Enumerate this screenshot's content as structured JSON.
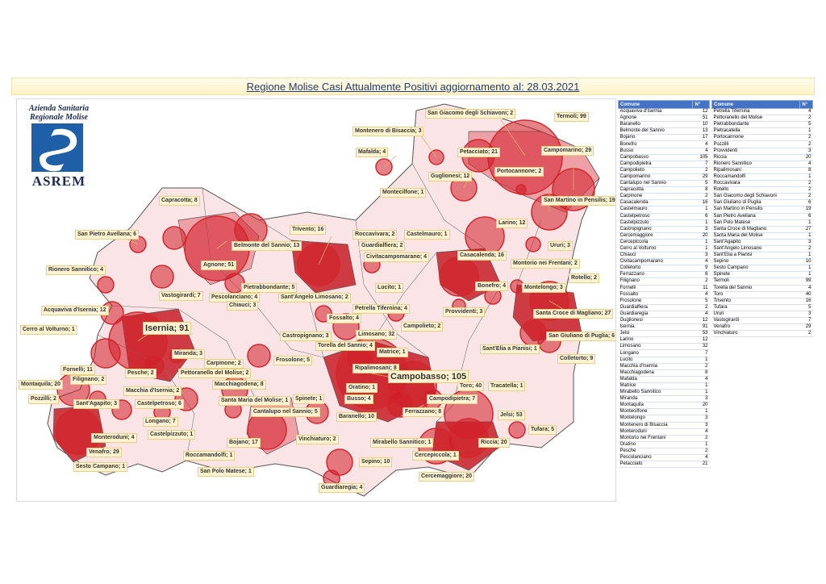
{
  "title": "Regione Molise Casi Attualmente Positivi aggiornamento al: 28.03.2021",
  "logo": {
    "line1": "Azienda Sanitaria",
    "line2": "Regionale Molise",
    "acronym": "ASREM",
    "emblem": "asrem-emblem"
  },
  "colors": {
    "marker": "#d4272b",
    "marker_fill": "rgba(210,30,40,0.55)",
    "header": "#4472c4",
    "label_bg": "#fff4cf"
  },
  "map_labels": {
    "sg_schiavoni": "San Giacomo degli Schiavoni; 2",
    "termoli": "Termoli; 99",
    "montenero": "Montenero di Bisaccia; 3",
    "mafalda": "Mafalda; 4",
    "petacciato": "Petacciato; 21",
    "campomarino": "Campomarino; 29",
    "portocannone": "Portocannone; 2",
    "guglionesi": "Guglionesi; 12",
    "montecilfone": "Montecilfone; 1",
    "sm_pensilis": "San Martino in Pensilis; 19",
    "capracotta": "Capracotta; 8",
    "trivento": "Trivento; 16",
    "roccavivara": "Roccavivara; 2",
    "castelmauro": "Castelmauro; 1",
    "larino": "Larino; 12",
    "ururi": "Ururi; 3",
    "sp_avellana": "San Pietro Avellana; 6",
    "belmonte": "Belmonte del Sannio; 13",
    "guardialfiera": "Guardialfiera; 2",
    "civitacampomarano": "Civitacampomarano; 4",
    "casacalenda": "Casacalenda; 16",
    "montorio": "Montorio nei Frentani; 2",
    "agnone": "Agnone; 51",
    "rionero": "Rionero Sannitico; 4",
    "rotello": "Rotello; 2",
    "pietrabbondante": "Pietrabbondante; 5",
    "vastogirardi": "Vastogirardi; 7",
    "lucito": "Lucito; 1",
    "bonefro": "Bonefro; 4",
    "montelongo": "Montelongo; 3",
    "pescolanciano": "Pescolanciano; 4",
    "sa_limosano": "Sant'Angelo Limosano; 2",
    "acquaviva": "Acquaviva d'Isernia; 12",
    "chiauci": "Chiauci; 3",
    "petrella": "Petrella Tifernina; 4",
    "provvidenti": "Provvidenti; 3",
    "scm": "Santa Croce di Magliano; 27",
    "fossalto": "Fossalto; 4",
    "cerro": "Cerro al Volturno; 1",
    "isernia": "Isernia; 91",
    "castropignano": "Castropignano; 3",
    "limosano": "Limosano; 32",
    "campolieto": "Campolieto; 2",
    "sg_puglia": "San Giuliano di Puglia; 6",
    "torella": "Torella del Sannio; 4",
    "miranda": "Miranda; 3",
    "matrice": "Matrice; 1",
    "se_pianisi": "Sant'Elia a Pianisi; 1",
    "fornelli": "Fornelli; 11",
    "carpinone": "Carpinone; 2",
    "frosolone": "Frosolone; 5",
    "colletorto": "Colletorto; 9",
    "filignano": "Filignano; 2",
    "pesche": "Pesche; 2",
    "pettoranello": "Pettoranello del Molise; 2",
    "ripalimosani": "Ripalimosani; 8",
    "montaquila": "Montaquila; 20",
    "campobasso": "Campobasso; 105",
    "macchia": "Macchia d'Isernia; 2",
    "oratino": "Oratino; 1",
    "toro": "Toro; 40",
    "tracatella": "Tracatella; 1",
    "macchiagodena": "Macchiagodena; 8",
    "pozzilli": "Pozzilli; 2",
    "santagapito": "Sant'Agapito; 3",
    "castelpetroso": "Castelpetroso; 6",
    "sm_molise": "Santa Maria del Molise; 1",
    "spinete": "Spinete; 1",
    "busso": "Busso; 4",
    "campodipietra": "Campodipietra; 7",
    "cantalupo": "Cantalupo nel Sannio; 5",
    "ferrazzano": "Ferrazzano; 8",
    "longano": "Longano; 7",
    "baranello": "Baranello; 10",
    "jelsi": "Jelsi; 53",
    "monteroduni": "Monteroduni; 4",
    "castelpizzuto": "Castelpizzuto; 1",
    "tufara": "Tufara; 5",
    "vinchiaturo": "Vinchiaturo; 2",
    "mirabello": "Mirabello Sannitico; 1",
    "bojano": "Bojano; 17",
    "riccia": "Riccia; 20",
    "venafro": "Venafro; 29",
    "roccamandolfi": "Roccamandolfi; 1",
    "cercepiccola": "Cercepiccola; 1",
    "sepino": "Sepino; 10",
    "sesto": "Sesto Campano; 1",
    "sp_matese": "San Polo Matese; 1",
    "cercemaggiore": "Cercemaggiore; 20",
    "guardiaregia": "Guardiaregia; 4"
  },
  "table": {
    "headers": {
      "comune": "Comune",
      "n": "N°"
    },
    "left": [
      [
        "Acquaviva d'Isernia",
        "12"
      ],
      [
        "Agnone",
        "51"
      ],
      [
        "Baranello",
        "10"
      ],
      [
        "Belmonte del Sannio",
        "13"
      ],
      [
        "Bojano",
        "17"
      ],
      [
        "Bonefro",
        "4"
      ],
      [
        "Busso",
        "4"
      ],
      [
        "Campobasso",
        "105"
      ],
      [
        "Campodipietra",
        "7"
      ],
      [
        "Campolieto",
        "2"
      ],
      [
        "Campomarino",
        "29"
      ],
      [
        "Cantalupo nel Sannio",
        "5"
      ],
      [
        "Capracotta",
        "8"
      ],
      [
        "Carpinone",
        "2"
      ],
      [
        "Casacalenda",
        "16"
      ],
      [
        "Castelmauro",
        "1"
      ],
      [
        "Castelpetroso",
        "6"
      ],
      [
        "Castelpizzuto",
        "1"
      ],
      [
        "Castropignano",
        "3"
      ],
      [
        "Cercemaggiore",
        "20"
      ],
      [
        "Cercepiccola",
        "1"
      ],
      [
        "Cerro al Volturno",
        "1"
      ],
      [
        "Chiauci",
        "3"
      ],
      [
        "Civitacampomarano",
        "4"
      ],
      [
        "Colletorto",
        "9"
      ],
      [
        "Ferrazzano",
        "8"
      ],
      [
        "Filignano",
        "2"
      ],
      [
        "Fornelli",
        "11"
      ],
      [
        "Fossalto",
        "4"
      ],
      [
        "Frosolone",
        "5"
      ],
      [
        "Guardialfiera",
        "2"
      ],
      [
        "Guardiaregia",
        "4"
      ],
      [
        "Guglionesi",
        "12"
      ],
      [
        "Isernia",
        "91"
      ],
      [
        "Jelsi",
        "53"
      ],
      [
        "Larino",
        "12"
      ],
      [
        "Limosano",
        "32"
      ],
      [
        "Longano",
        "7"
      ],
      [
        "Lucito",
        "1"
      ],
      [
        "Macchia d'Isernia",
        "2"
      ],
      [
        "Macchiagodena",
        "8"
      ],
      [
        "Mafalda",
        "4"
      ],
      [
        "Matrice",
        "1"
      ],
      [
        "Mirabello Sannitico",
        "1"
      ],
      [
        "Miranda",
        "3"
      ],
      [
        "Montaquila",
        "20"
      ],
      [
        "Montecilfone",
        "1"
      ],
      [
        "Montelongo",
        "3"
      ],
      [
        "Montenero di Bisaccia",
        "3"
      ],
      [
        "Monteroduni",
        "4"
      ],
      [
        "Montorio nei Frentani",
        "2"
      ],
      [
        "Oratino",
        "1"
      ],
      [
        "Pesche",
        "2"
      ],
      [
        "Pescolanciano",
        "4"
      ],
      [
        "Petacciato",
        "21"
      ]
    ],
    "right": [
      [
        "Petrella Tifernina",
        "4"
      ],
      [
        "Pettoranello del Molise",
        "2"
      ],
      [
        "Pietrabbondante",
        "5"
      ],
      [
        "Pietracatella",
        "1"
      ],
      [
        "Portocannone",
        "2"
      ],
      [
        "Pozzilli",
        "2"
      ],
      [
        "Provvidenti",
        "3"
      ],
      [
        "Riccia",
        "20"
      ],
      [
        "Rionero Sannitico",
        "4"
      ],
      [
        "Ripalimosani",
        "8"
      ],
      [
        "Roccamandolfi",
        "1"
      ],
      [
        "Roccavivara",
        "2"
      ],
      [
        "Rotello",
        "2"
      ],
      [
        "San Giacomo degli Schiavoni",
        "2"
      ],
      [
        "San Giuliano di Puglia",
        "6"
      ],
      [
        "San Martino in Pensilis",
        "19"
      ],
      [
        "San Pietro Avellana",
        "6"
      ],
      [
        "San Polo Matese",
        "1"
      ],
      [
        "Santa Croce di Magliano",
        "27"
      ],
      [
        "Santa Maria del Molise",
        "1"
      ],
      [
        "Sant'Agapito",
        "3"
      ],
      [
        "Sant'Angelo Limosano",
        "2"
      ],
      [
        "Sant'Elia a Pianisi",
        "1"
      ],
      [
        "Sepino",
        "10"
      ],
      [
        "Sesto Campano",
        "1"
      ],
      [
        "Spinete",
        "1"
      ],
      [
        "Termoli",
        "99"
      ],
      [
        "Torella del Sannio",
        "4"
      ],
      [
        "Toro",
        "40"
      ],
      [
        "Trivento",
        "16"
      ],
      [
        "Tufara",
        "5"
      ],
      [
        "Ururi",
        "3"
      ],
      [
        "Vastogirardi",
        "7"
      ],
      [
        "Venafro",
        "29"
      ],
      [
        "Vinchiaturo",
        "2"
      ]
    ]
  }
}
